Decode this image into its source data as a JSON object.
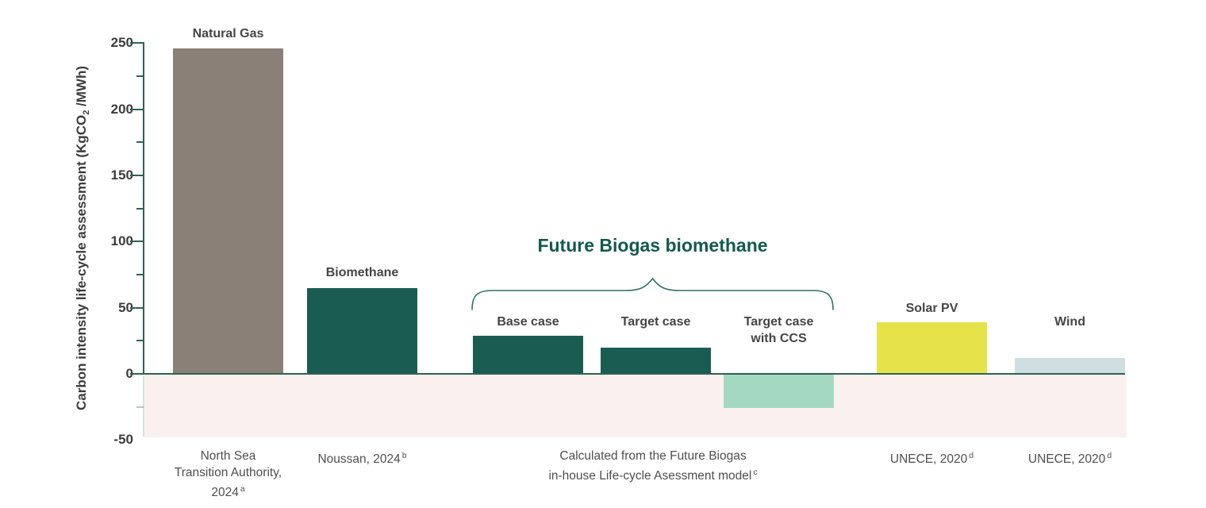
{
  "chart_data": {
    "type": "bar",
    "title": "Future Biogas biomethane",
    "ylabel": {
      "pre": "Carbon intensity life-cycle assessment (KgCO",
      "sub": "2",
      "post": " /MWh)"
    },
    "ylim": [
      -50,
      250
    ],
    "y_major_ticks": [
      250,
      200,
      150,
      100,
      50,
      0,
      -50
    ],
    "y_minor_ticks": [
      225,
      175,
      125,
      75,
      25,
      -25
    ],
    "legend_position": "none",
    "grid": false,
    "bars": [
      {
        "name": "natural-gas",
        "label_lines": [
          "Natural Gas"
        ],
        "value": 246,
        "color": "#8B8078",
        "source_lines": [
          "North Sea",
          "Transition Authority,",
          "2024"
        ],
        "source_sup": "a"
      },
      {
        "name": "biomethane",
        "label_lines": [
          "Biomethane"
        ],
        "value": 65,
        "color": "#1A5B52",
        "source_lines": [
          "Noussan, 2024"
        ],
        "source_sup": "b"
      },
      {
        "name": "base-case",
        "label_lines": [
          "Base case"
        ],
        "value": 29,
        "color": "#1A5B52",
        "source_lines": [],
        "source_sup": ""
      },
      {
        "name": "target-case",
        "label_lines": [
          "Target case"
        ],
        "value": 20,
        "color": "#1A5B52",
        "source_lines": [],
        "source_sup": ""
      },
      {
        "name": "target-case-with-ccs",
        "label_lines": [
          "Target case",
          "with CCS"
        ],
        "value": -25,
        "color": "#A5D8C0",
        "source_lines": [],
        "source_sup": ""
      },
      {
        "name": "solar-pv",
        "label_lines": [
          "Solar PV"
        ],
        "value": 39,
        "color": "#E5E24A",
        "source_lines": [
          "UNECE, 2020"
        ],
        "source_sup": "d"
      },
      {
        "name": "wind",
        "label_lines": [
          "Wind"
        ],
        "value": 12,
        "color": "#CFDEE1",
        "source_lines": [
          "UNECE, 2020"
        ],
        "source_sup": "d"
      }
    ],
    "group_annotation": {
      "label": "Future Biogas biomethane",
      "covers_bars": [
        "base-case",
        "target-case",
        "target-case-with-ccs"
      ]
    },
    "group_source": {
      "lines": [
        "Calculated from the Future Biogas",
        "in-house Life-cycle Asessment model"
      ],
      "sup": "c"
    },
    "colors": {
      "axis": "#2E6158",
      "axis_pale": "#D5E5E1",
      "title": "#15594E",
      "brace": "#2E7168",
      "negative_area": "#FAF1EE",
      "tick_label": "#3C3C3C",
      "bar_label": "#454545",
      "source_label": "#4F4F4F"
    }
  }
}
